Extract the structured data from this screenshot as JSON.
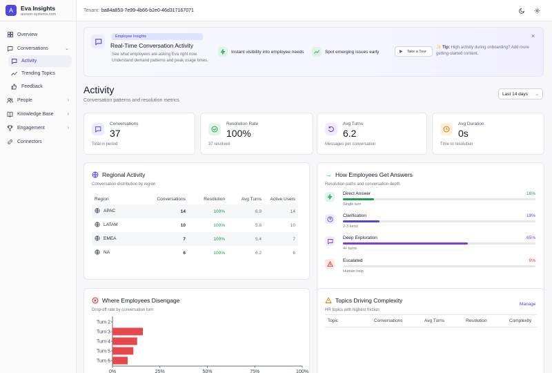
{
  "brand": {
    "name": "Eva Insights",
    "subtitle": "aureon-systems.com",
    "initial": "A"
  },
  "nav": [
    {
      "label": "Overview",
      "icon": "grid-icon"
    },
    {
      "label": "Conversations",
      "icon": "chat-icon",
      "expanded": true
    },
    {
      "label": "Activity",
      "icon": "chat-icon",
      "sub": true,
      "active": true
    },
    {
      "label": "Trending Topics",
      "icon": "trend-icon",
      "sub": true
    },
    {
      "label": "Feedback",
      "icon": "thumbs-up-icon",
      "sub": true
    },
    {
      "label": "People",
      "icon": "people-icon"
    },
    {
      "label": "Knowledge Base",
      "icon": "book-icon"
    },
    {
      "label": "Engagement",
      "icon": "trophy-icon"
    },
    {
      "label": "Connectors",
      "icon": "link-icon"
    }
  ],
  "topbar": {
    "tenant_label": "Tenant:",
    "tenant_id": "ba84a853-7e99-4b66-b2e0-46d317167071"
  },
  "banner": {
    "chip": "Employee Insights",
    "title": "Real-Time Conversation Activity",
    "description": "See what employees are asking Eva right now. Understand demand patterns and peak usage times.",
    "feature1": "Instant visibility into employee needs",
    "feature2": "Spot emerging issues early",
    "tour_label": "Take a Tour",
    "tip_label": "Tip:",
    "tip_text": "High activity during onboarding? Add more getting-started content."
  },
  "page": {
    "title": "Activity",
    "subtitle": "Conversation patterns and resolution metrics",
    "range": "Last 14 days"
  },
  "stats": {
    "conversations": {
      "label": "Conversations",
      "value": "37",
      "sub": "Total in period"
    },
    "resolution": {
      "label": "Resolution Rate",
      "value": "100%",
      "sub": "37 resolved"
    },
    "turns": {
      "label": "Avg Turns",
      "value": "6.2",
      "sub": "Messages per conversation"
    },
    "duration": {
      "label": "Avg Duration",
      "value": "0s",
      "sub": "Time to resolution"
    }
  },
  "regional": {
    "title": "Regional Activity",
    "subtitle": "Conversation distribution by region",
    "headers": [
      "Region",
      "Conversations",
      "Resolution",
      "Avg Turns",
      "Active Users"
    ],
    "rows": [
      {
        "region": "APAC",
        "conversations": "14",
        "resolution": "100%",
        "turns": "6.9",
        "users": "14"
      },
      {
        "region": "LATAM",
        "conversations": "10",
        "resolution": "100%",
        "turns": "5.8",
        "users": "10"
      },
      {
        "region": "EMEA",
        "conversations": "7",
        "resolution": "100%",
        "turns": "5.4",
        "users": "7"
      },
      {
        "region": "NA",
        "conversations": "6",
        "resolution": "100%",
        "turns": "6.2",
        "users": "6"
      }
    ]
  },
  "answers": {
    "title": "How Employees Get Answers",
    "subtitle": "Resolution paths and conversation depth",
    "items": [
      {
        "name": "Direct Answer",
        "pct": "16%",
        "value": 16,
        "sub": "Single turn",
        "color": "#16a34a"
      },
      {
        "name": "Clarification",
        "pct": "19%",
        "value": 19,
        "sub": "2-3 turns",
        "color": "#4f46e5"
      },
      {
        "name": "Deep Exploration",
        "pct": "65%",
        "value": 65,
        "sub": "4+ turns",
        "color": "#7c3aed"
      },
      {
        "name": "Escalated",
        "pct": "0%",
        "value": 0,
        "sub": "Human help",
        "color": "#dc2626"
      }
    ]
  },
  "disengage": {
    "title": "Where Employees Disengage",
    "subtitle": "Drop-off rate by conversation turn"
  },
  "complexity": {
    "title": "Topics Driving Complexity",
    "subtitle": "HR topics with highest friction",
    "manage": "Manage",
    "headers": [
      "Topic",
      "Conversations",
      "Avg Turns",
      "Resolution",
      "Complexity"
    ]
  },
  "chart_data": {
    "type": "bar",
    "orientation": "horizontal",
    "categories": [
      "Turn 2",
      "Turn 3",
      "Turn 4",
      "Turn 5",
      "Turn 6"
    ],
    "values": [
      0,
      16,
      13,
      11,
      8
    ],
    "xticks": [
      "0%",
      "25%",
      "50%",
      "75%",
      "100%"
    ],
    "xlim": [
      0,
      100
    ],
    "color": "#e5484d"
  }
}
